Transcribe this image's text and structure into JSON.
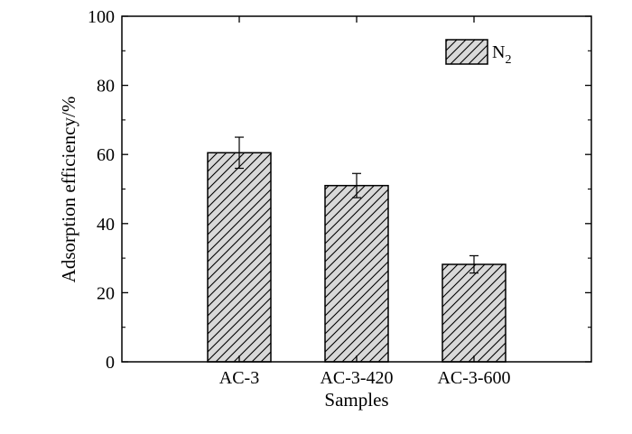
{
  "chart_data": {
    "type": "bar",
    "categories": [
      "AC-3",
      "AC-3-420",
      "AC-3-600"
    ],
    "series": [
      {
        "name": "N2",
        "values": [
          60.5,
          51.0,
          28.2
        ],
        "errors": [
          4.5,
          3.5,
          2.5
        ],
        "pattern": "diagonal-hatch"
      }
    ],
    "legend": {
      "base": "N",
      "subscript": "2",
      "placement": "top-right"
    },
    "xlabel": "Samples",
    "ylabel": "Adsorption efficiency/%",
    "ylim": [
      0,
      100
    ],
    "yticks": [
      "0",
      "20",
      "40",
      "60",
      "80",
      "100"
    ],
    "grid": false,
    "colors": {
      "bar_fill": "#d9d9d9",
      "hatch": "#000000",
      "axis": "#000000"
    }
  }
}
